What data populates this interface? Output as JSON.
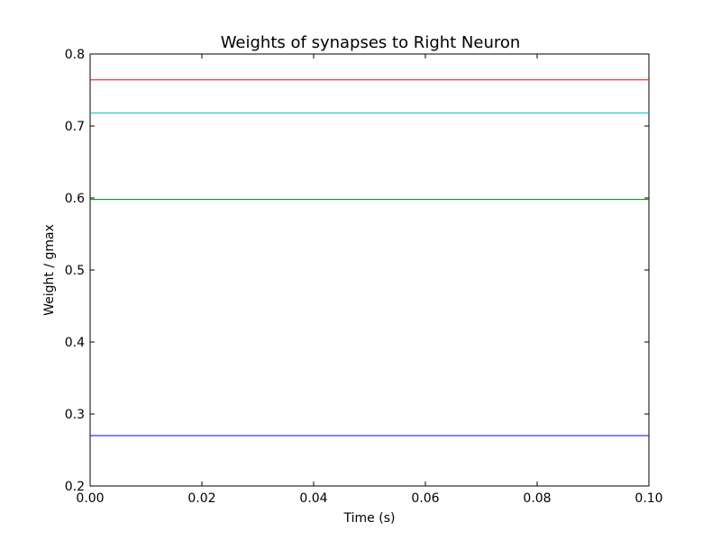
{
  "chart_data": {
    "type": "line",
    "title": "Weights of synapses to Right Neuron",
    "xlabel": "Time (s)",
    "ylabel": "Weight / gmax",
    "xlim": [
      0.0,
      0.1
    ],
    "ylim": [
      0.2,
      0.8
    ],
    "x_ticks": [
      "0.00",
      "0.02",
      "0.04",
      "0.06",
      "0.08",
      "0.10"
    ],
    "y_ticks": [
      "0.2",
      "0.3",
      "0.4",
      "0.5",
      "0.6",
      "0.7",
      "0.8"
    ],
    "grid": false,
    "series": [
      {
        "color": "#ff0000",
        "x": [
          0.0,
          0.1
        ],
        "y": [
          0.764,
          0.764
        ]
      },
      {
        "color": "#00bfbf",
        "x": [
          0.0,
          0.1
        ],
        "y": [
          0.718,
          0.718
        ]
      },
      {
        "color": "#008000",
        "x": [
          0.0,
          0.1
        ],
        "y": [
          0.598,
          0.598
        ]
      },
      {
        "color": "#0000ff",
        "x": [
          0.0,
          0.1
        ],
        "y": [
          0.27,
          0.27
        ]
      }
    ]
  }
}
